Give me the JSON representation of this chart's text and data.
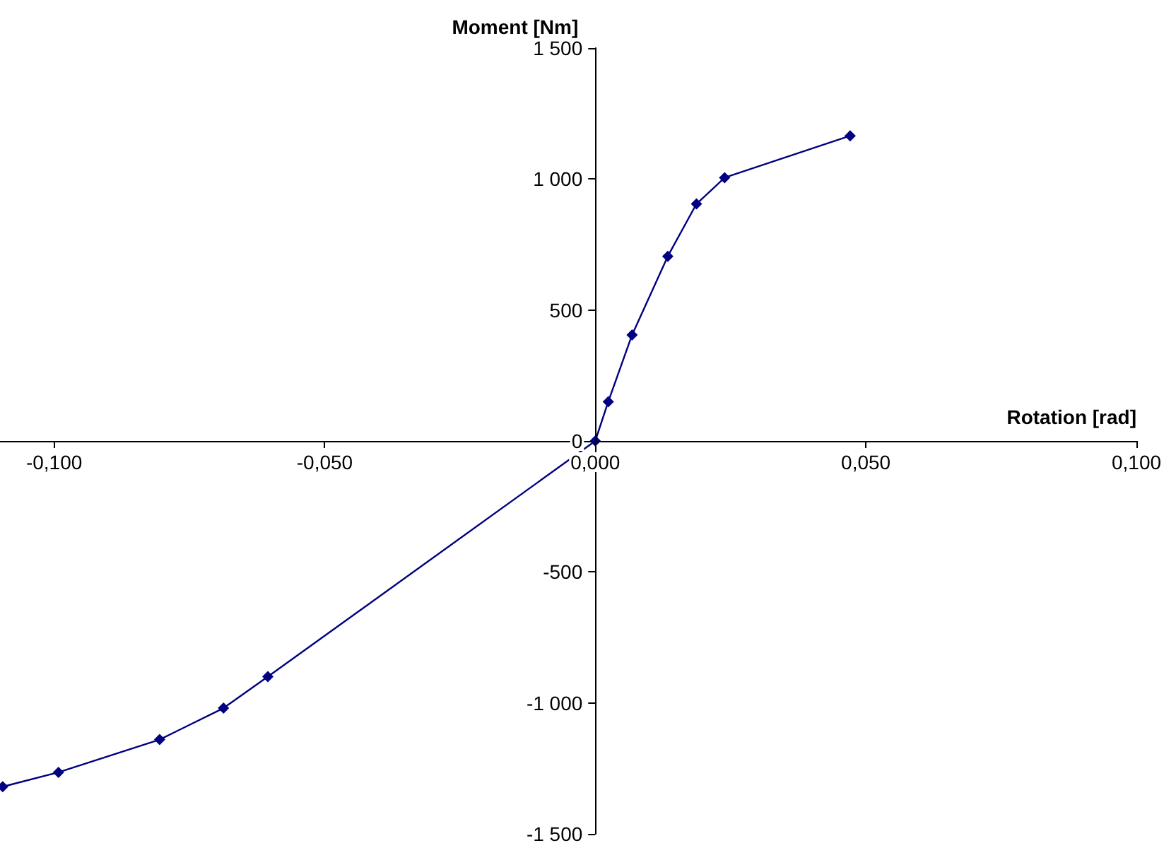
{
  "chart_data": {
    "type": "line",
    "xlabel": "Rotation [rad]",
    "ylabel": "Moment [Nm]",
    "x": [
      -0.1095,
      -0.0992,
      -0.0805,
      -0.0687,
      -0.0605,
      0,
      0.0024,
      0.0068,
      0.0134,
      0.0187,
      0.0239,
      0.0471
    ],
    "series": [
      {
        "color": "#000080",
        "values": [
          -1320,
          -1265,
          -1140,
          -1020,
          -900,
          0,
          150,
          405,
          705,
          905,
          1005,
          1165
        ]
      }
    ],
    "xlim": [
      -0.11,
      0.1
    ],
    "xticks": [
      {
        "value": -0.1,
        "label": "-0,100"
      },
      {
        "value": -0.05,
        "label": "-0,050"
      },
      {
        "value": 0,
        "label": "0,000"
      },
      {
        "value": 0.05,
        "label": "0,050"
      },
      {
        "value": 0.1,
        "label": "0,100"
      }
    ],
    "ylim": [
      -1500,
      1500
    ],
    "yticks": [
      {
        "value": -1500,
        "label": "-1 500"
      },
      {
        "value": -1000,
        "label": "-1 000"
      },
      {
        "value": -500,
        "label": "-500"
      },
      {
        "value": 0,
        "label": "0"
      },
      {
        "value": 500,
        "label": "500"
      },
      {
        "value": 1000,
        "label": "1 000"
      },
      {
        "value": 1500,
        "label": "1 500"
      }
    ],
    "grid": false,
    "marker": "diamond",
    "line_style": "solid"
  }
}
